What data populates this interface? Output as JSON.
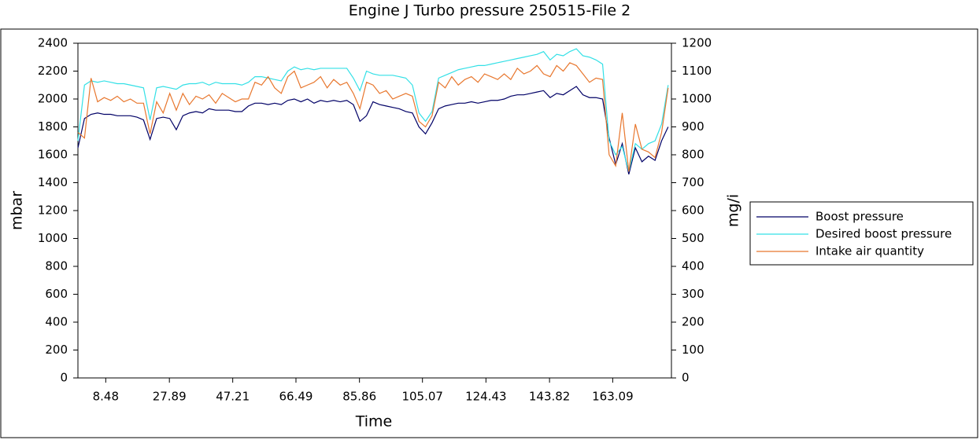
{
  "chart_data": {
    "type": "line",
    "title": "Engine J  Turbo pressure 250515-File 2",
    "x_label": "Time",
    "y_label": "mbar",
    "y2_label": "mg/i",
    "x": [
      0,
      2,
      4,
      6,
      8,
      10,
      12,
      14,
      16,
      18,
      20,
      22,
      24,
      26,
      28,
      30,
      32,
      34,
      36,
      38,
      40,
      42,
      44,
      46,
      48,
      50,
      52,
      54,
      56,
      58,
      60,
      62,
      64,
      66,
      68,
      70,
      72,
      74,
      76,
      78,
      80,
      82,
      84,
      86,
      88,
      90,
      92,
      94,
      96,
      98,
      100,
      102,
      104,
      106,
      108,
      110,
      112,
      114,
      116,
      118,
      120,
      122,
      124,
      126,
      128,
      130,
      132,
      134,
      136,
      138,
      140,
      142,
      144,
      146,
      148,
      150,
      152,
      154,
      156,
      158,
      160,
      162,
      164,
      166,
      168,
      170,
      172,
      174,
      176,
      178,
      180
    ],
    "xlim": [
      0,
      181
    ],
    "xticks": [
      8.48,
      27.89,
      47.21,
      66.49,
      85.86,
      105.07,
      124.43,
      143.82,
      163.09
    ],
    "ylim": [
      0,
      2400
    ],
    "yticks": [
      0,
      200,
      400,
      600,
      800,
      1000,
      1200,
      1400,
      1600,
      1800,
      2000,
      2200,
      2400
    ],
    "y2lim": [
      0,
      1200
    ],
    "y2ticks": [
      0,
      100,
      200,
      300,
      400,
      500,
      600,
      700,
      800,
      900,
      1000,
      1100,
      1200
    ],
    "legend": "right",
    "series": [
      {
        "name": "Boost pressure",
        "color": "#000066",
        "values": [
          1650,
          1860,
          1890,
          1900,
          1890,
          1890,
          1880,
          1880,
          1880,
          1870,
          1850,
          1710,
          1860,
          1870,
          1860,
          1780,
          1880,
          1900,
          1910,
          1900,
          1930,
          1920,
          1920,
          1920,
          1910,
          1910,
          1950,
          1970,
          1970,
          1960,
          1970,
          1960,
          1990,
          2000,
          1980,
          2000,
          1970,
          1990,
          1980,
          1990,
          1980,
          1990,
          1960,
          1840,
          1880,
          1980,
          1960,
          1950,
          1940,
          1930,
          1910,
          1900,
          1800,
          1750,
          1830,
          1930,
          1950,
          1960,
          1970,
          1970,
          1980,
          1970,
          1980,
          1990,
          1990,
          2000,
          2020,
          2030,
          2030,
          2040,
          2050,
          2060,
          2010,
          2040,
          2030,
          2060,
          2090,
          2030,
          2010,
          2010,
          2000,
          1720,
          1530,
          1680,
          1460,
          1650,
          1550,
          1590,
          1560,
          1700,
          1800
        ]
      },
      {
        "name": "Desired boost pressure",
        "color": "#33e0e6",
        "values": [
          1700,
          2100,
          2130,
          2120,
          2130,
          2120,
          2110,
          2110,
          2100,
          2090,
          2080,
          1850,
          2080,
          2090,
          2080,
          2070,
          2100,
          2110,
          2110,
          2120,
          2100,
          2120,
          2110,
          2110,
          2110,
          2100,
          2120,
          2160,
          2160,
          2150,
          2140,
          2130,
          2200,
          2230,
          2210,
          2220,
          2210,
          2220,
          2220,
          2220,
          2220,
          2220,
          2150,
          2060,
          2200,
          2180,
          2170,
          2170,
          2170,
          2160,
          2150,
          2100,
          1900,
          1840,
          1910,
          2150,
          2170,
          2190,
          2210,
          2220,
          2230,
          2240,
          2240,
          2250,
          2260,
          2270,
          2280,
          2290,
          2300,
          2310,
          2320,
          2340,
          2280,
          2320,
          2310,
          2340,
          2360,
          2310,
          2300,
          2280,
          2250,
          1700,
          1600,
          1660,
          1480,
          1680,
          1640,
          1680,
          1700,
          1820,
          2100
        ]
      },
      {
        "name": "Intake air quantity",
        "color": "#e8772e",
        "axis": "y2",
        "values": [
          880,
          860,
          1075,
          990,
          1005,
          995,
          1010,
          990,
          1000,
          985,
          985,
          875,
          990,
          950,
          1020,
          960,
          1020,
          980,
          1010,
          1000,
          1015,
          985,
          1020,
          1005,
          990,
          1000,
          1000,
          1060,
          1050,
          1080,
          1040,
          1020,
          1080,
          1100,
          1040,
          1050,
          1060,
          1080,
          1040,
          1070,
          1050,
          1060,
          1020,
          965,
          1060,
          1050,
          1020,
          1030,
          1000,
          1010,
          1020,
          1010,
          920,
          900,
          940,
          1060,
          1040,
          1080,
          1050,
          1070,
          1080,
          1060,
          1090,
          1080,
          1070,
          1090,
          1070,
          1110,
          1090,
          1100,
          1120,
          1090,
          1080,
          1120,
          1100,
          1130,
          1120,
          1090,
          1060,
          1075,
          1070,
          800,
          760,
          950,
          740,
          910,
          820,
          810,
          790,
          880,
          1040
        ]
      }
    ]
  }
}
